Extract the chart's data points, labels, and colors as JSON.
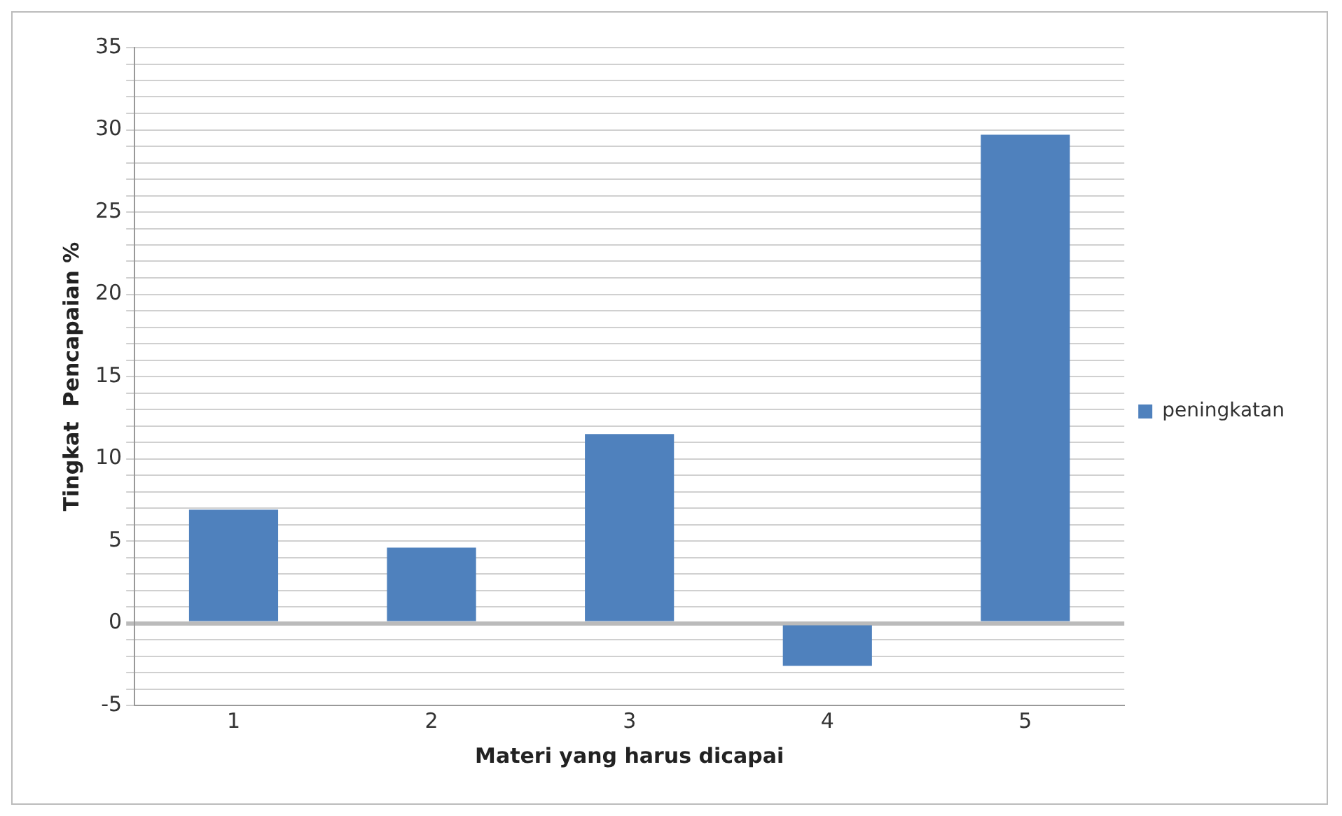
{
  "chart_data": {
    "type": "bar",
    "categories": [
      "1",
      "2",
      "3",
      "4",
      "5"
    ],
    "series": [
      {
        "name": "peningkatan",
        "color": "#4f81bd",
        "values": [
          6.9,
          4.6,
          11.5,
          -2.6,
          29.7
        ]
      }
    ],
    "xlabel": "Materi yang harus dicapai",
    "ylabel": "Tingkat  Pencapaian %",
    "ylim": [
      -5,
      35
    ],
    "yticks": [
      -5,
      {
        "value": -4,
        "label": null
      },
      {
        "value": -3,
        "label": null
      },
      {
        "value": -2,
        "label": null
      },
      {
        "value": -1,
        "label": null
      },
      0,
      {
        "value": 1,
        "label": null
      },
      {
        "value": 2,
        "label": null
      },
      {
        "value": 3,
        "label": null
      },
      {
        "value": 4,
        "label": null
      },
      5,
      {
        "value": 6,
        "label": null
      },
      {
        "value": 7,
        "label": null
      },
      {
        "value": 8,
        "label": null
      },
      {
        "value": 9,
        "label": null
      },
      10,
      {
        "value": 11,
        "label": null
      },
      {
        "value": 12,
        "label": null
      },
      {
        "value": 13,
        "label": null
      },
      {
        "value": 14,
        "label": null
      },
      15,
      {
        "value": 16,
        "label": null
      },
      {
        "value": 17,
        "label": null
      },
      {
        "value": 18,
        "label": null
      },
      {
        "value": 19,
        "label": null
      },
      20,
      {
        "value": 21,
        "label": null
      },
      {
        "value": 22,
        "label": null
      },
      {
        "value": 23,
        "label": null
      },
      {
        "value": 24,
        "label": null
      },
      25,
      {
        "value": 26,
        "label": null
      },
      {
        "value": 27,
        "label": null
      },
      {
        "value": 28,
        "label": null
      },
      {
        "value": 29,
        "label": null
      },
      30,
      {
        "value": 31,
        "label": null
      },
      {
        "value": 32,
        "label": null
      },
      {
        "value": 33,
        "label": null
      },
      {
        "value": 34,
        "label": null
      },
      35
    ],
    "grid": "y",
    "legend": "right"
  }
}
